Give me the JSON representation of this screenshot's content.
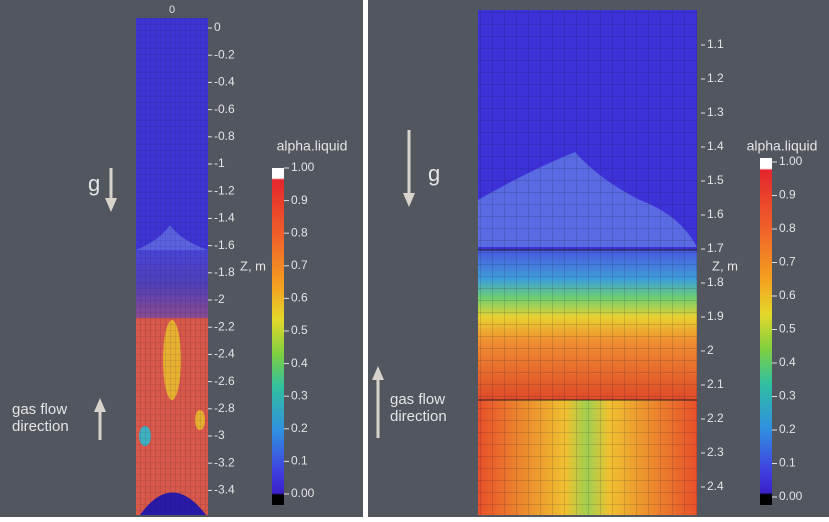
{
  "panels": [
    {
      "top_label": "0",
      "z_ticks": [
        "0",
        "-0.2",
        "-0.4",
        "-0.6",
        "-0.8",
        "-1",
        "-1.2",
        "-1.4",
        "-1.6",
        "-1.8",
        "-2",
        "-2.2",
        "-2.4",
        "-2.6",
        "-2.8",
        "-3",
        "-3.2",
        "-3.4"
      ],
      "z_label": "Z, m",
      "g_label": "g",
      "flow_label": [
        "gas flow",
        "direction"
      ],
      "colorbar": {
        "title": "alpha.liquid",
        "ticks": [
          "1.00",
          "0.9",
          "0.8",
          "0.7",
          "0.6",
          "0.5",
          "0.4",
          "0.3",
          "0.2",
          "0.1",
          "0.00"
        ]
      }
    },
    {
      "z_ticks": [
        "1.1",
        "1.2",
        "1.3",
        "1.4",
        "1.5",
        "1.6",
        "1.7",
        "1.8",
        "1.9",
        "2",
        "2.1",
        "2.2",
        "2.3",
        "2.4"
      ],
      "z_label": "Z, m",
      "g_label": "g",
      "flow_label": [
        "gas flow",
        "direction"
      ],
      "colorbar": {
        "title": "alpha.liquid",
        "ticks": [
          "1.00",
          "0.9",
          "0.8",
          "0.7",
          "0.6",
          "0.5",
          "0.4",
          "0.3",
          "0.2",
          "0.1",
          "0.00"
        ]
      }
    }
  ]
}
